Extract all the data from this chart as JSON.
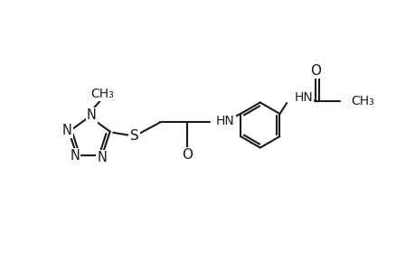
{
  "bg_color": "#ffffff",
  "line_color": "#1a1a1a",
  "line_width": 1.5,
  "font_size": 10.5,
  "fig_width": 4.6,
  "fig_height": 3.0,
  "dpi": 100,
  "xlim": [
    -4.5,
    3.2
  ],
  "ylim": [
    -1.3,
    1.6
  ]
}
